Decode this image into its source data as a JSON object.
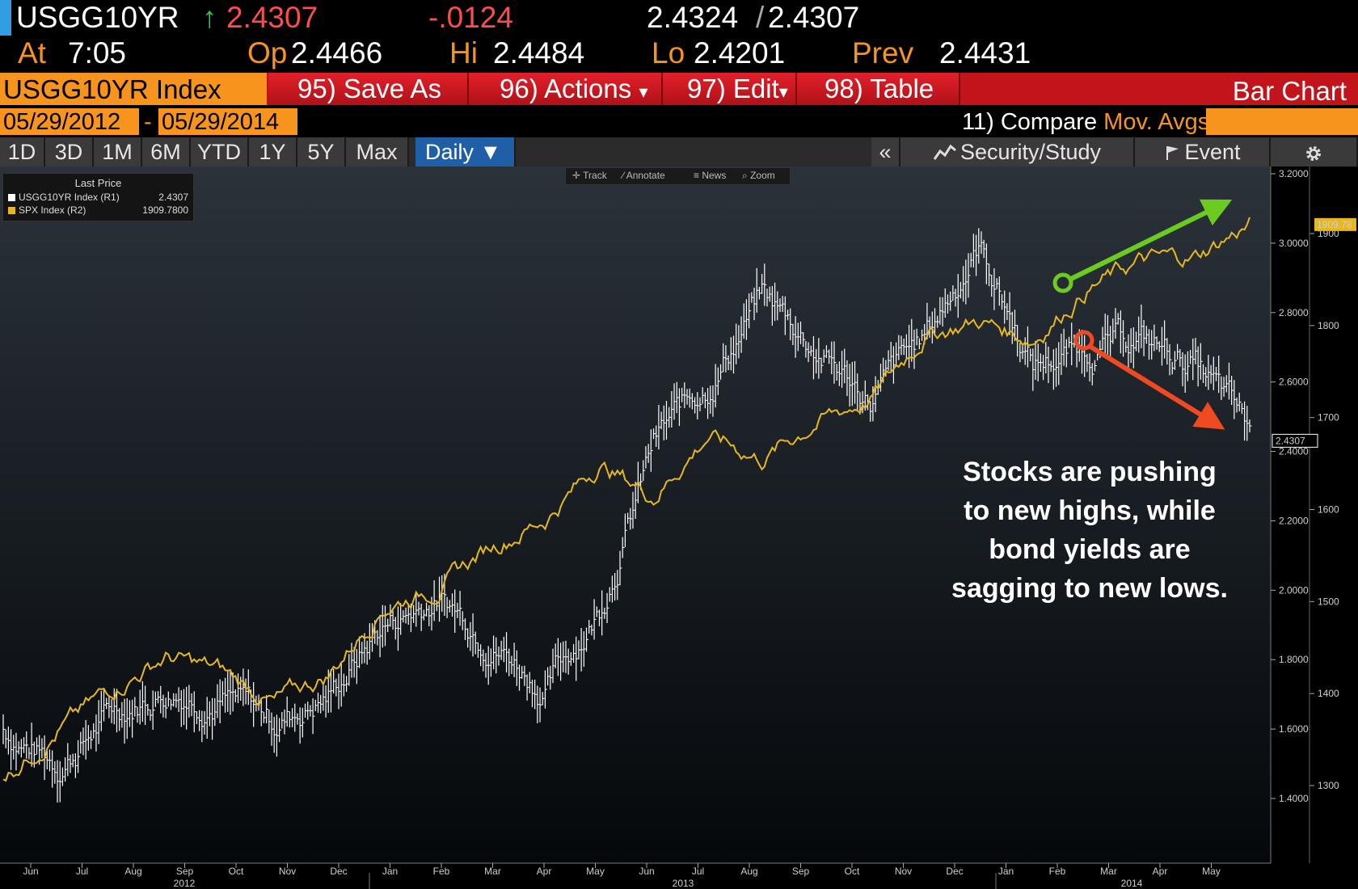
{
  "quote": {
    "ticker": "USGG10YR",
    "arrow": "↑",
    "last": "2.4307",
    "change": "-.0124",
    "bid": "2.4324",
    "sep": "/",
    "ask": "2.4307",
    "at_label": "At",
    "time": "7:05",
    "op_label": "Op",
    "op": "2.4466",
    "hi_label": "Hi",
    "hi": "2.4484",
    "lo_label": "Lo",
    "lo": "2.4201",
    "prev_label": "Prev",
    "prev": "2.4431"
  },
  "command_bar": {
    "index_label": "USGG10YR Index",
    "save_as": "95) Save As",
    "actions": "96) Actions",
    "actions_arrow": "▾",
    "edit": "97) Edit",
    "edit_arrow": "▾",
    "table": "98) Table",
    "title": "Bar Chart"
  },
  "date_range": {
    "start": "05/29/2012",
    "dash": "-",
    "end": "05/29/2014",
    "compare_label": "11) Compare",
    "mov_avgs": "Mov. Avgs"
  },
  "tabs": [
    "1D",
    "3D",
    "1M",
    "6M",
    "YTD",
    "1Y",
    "5Y",
    "Max"
  ],
  "daily_tab": "Daily ▼",
  "right_tabs": {
    "collapse": "«",
    "security_study": "Security/Study",
    "event": "Event"
  },
  "toolbar": {
    "track": "Track",
    "annotate": "Annotate",
    "news": "News",
    "zoom": "Zoom"
  },
  "legend": {
    "title": "Last Price",
    "items": [
      {
        "name": "USGG10YR Index  (R1)",
        "value": "2.4307",
        "color": "#ffffff"
      },
      {
        "name": "SPX Index  (R2)",
        "value": "1909.7800",
        "color": "#e6b81e"
      }
    ]
  },
  "annotation": {
    "lines": [
      "Stocks are pushing",
      "to new highs, while",
      "bond yields are",
      "sagging to new lows."
    ]
  },
  "colors": {
    "yield_bars": "#ffffff",
    "spx_line": "#e6b81e",
    "green_arrow": "#6ccb1f",
    "red_arrow": "#f04a22",
    "accent_orange": "#f7941d",
    "command_red": "#c3141b"
  },
  "chart_data": {
    "type": "line",
    "title": "",
    "x_ticks": [
      "Jun",
      "Jul",
      "Aug",
      "Sep",
      "Oct",
      "Nov",
      "Dec",
      "Jan",
      "Feb",
      "Mar",
      "Apr",
      "May",
      "Jun",
      "Jul",
      "Aug",
      "Sep",
      "Oct",
      "Nov",
      "Dec",
      "Jan",
      "Feb",
      "Mar",
      "Apr",
      "May"
    ],
    "x_years": [
      "2012",
      "2013",
      "2014"
    ],
    "x": [
      "2012-06",
      "2012-07",
      "2012-08",
      "2012-09",
      "2012-10",
      "2012-11",
      "2012-12",
      "2013-01",
      "2013-02",
      "2013-03",
      "2013-04",
      "2013-05",
      "2013-06",
      "2013-07",
      "2013-08",
      "2013-09",
      "2013-10",
      "2013-11",
      "2013-12",
      "2014-01",
      "2014-02",
      "2014-03",
      "2014-04",
      "2014-05"
    ],
    "y1_axis": {
      "label": "",
      "range": [
        1.3,
        3.2
      ],
      "ticks": [
        "3.2000",
        "3.0000",
        "2.8000",
        "2.6000",
        "2.4000",
        "2.2000",
        "2.0000",
        "1.8000",
        "1.6000",
        "1.4000"
      ]
    },
    "y2_axis": {
      "label": "",
      "range": [
        1250,
        1950
      ],
      "ticks": [
        "1900",
        "1800",
        "1700",
        "1600",
        "1500",
        "1400",
        "1300"
      ]
    },
    "series": [
      {
        "name": "USGG10YR Index (R1)",
        "axis": "R1",
        "style": "hlc-bars",
        "values": [
          1.6,
          1.5,
          1.65,
          1.72,
          1.7,
          1.62,
          1.7,
          1.9,
          1.98,
          1.88,
          1.72,
          1.95,
          2.42,
          2.6,
          2.85,
          2.7,
          2.55,
          2.72,
          3.0,
          2.65,
          2.7,
          2.72,
          2.65,
          2.45
        ]
      },
      {
        "name": "SPX Index (R2)",
        "axis": "R2",
        "style": "line",
        "values": [
          1310,
          1360,
          1405,
          1440,
          1425,
          1390,
          1420,
          1495,
          1515,
          1560,
          1590,
          1650,
          1615,
          1680,
          1655,
          1695,
          1720,
          1790,
          1805,
          1785,
          1840,
          1870,
          1875,
          1910
        ]
      }
    ],
    "last_labels": {
      "r1": "2.4307",
      "r2": "1909.78"
    },
    "grid": false,
    "legend_position": "top-left"
  }
}
